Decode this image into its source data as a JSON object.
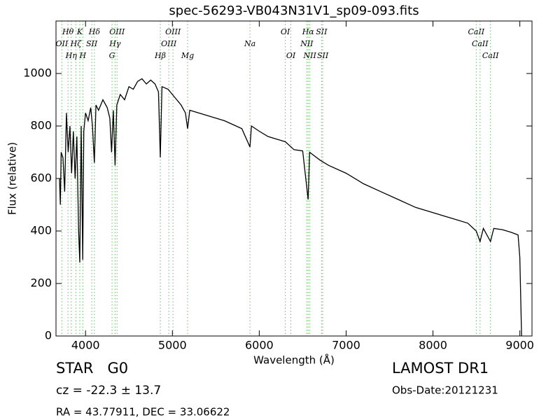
{
  "chart_data": {
    "type": "line",
    "title": "spec-56293-VB043N31V1_sp09-093.fits",
    "xlabel": "Wavelength (Å)",
    "ylabel": "Flux (relative)",
    "xlim": [
      3660,
      9140
    ],
    "ylim": [
      0,
      1200
    ],
    "xticks": [
      4000,
      5000,
      6000,
      7000,
      8000,
      9000
    ],
    "yticks": [
      0,
      200,
      400,
      600,
      800,
      1000
    ],
    "x": [
      3700,
      3710,
      3720,
      3740,
      3760,
      3780,
      3800,
      3820,
      3840,
      3860,
      3880,
      3900,
      3920,
      3934,
      3950,
      3968,
      3980,
      4000,
      4030,
      4060,
      4080,
      4102,
      4120,
      4150,
      4200,
      4250,
      4280,
      4300,
      4320,
      4340,
      4360,
      4400,
      4450,
      4500,
      4550,
      4600,
      4650,
      4700,
      4750,
      4800,
      4840,
      4861,
      4880,
      4950,
      5000,
      5050,
      5100,
      5150,
      5175,
      5200,
      5300,
      5400,
      5500,
      5600,
      5700,
      5800,
      5893,
      5910,
      6000,
      6100,
      6200,
      6300,
      6400,
      6500,
      6563,
      6580,
      6700,
      6800,
      7000,
      7200,
      7400,
      7600,
      7800,
      8000,
      8200,
      8400,
      8498,
      8542,
      8580,
      8662,
      8700,
      8800,
      8900,
      8980,
      9000,
      9020
    ],
    "series": [
      {
        "color": "#000000",
        "values": [
          600,
          500,
          700,
          680,
          550,
          850,
          700,
          800,
          620,
          780,
          600,
          760,
          400,
          280,
          800,
          290,
          780,
          850,
          820,
          870,
          800,
          660,
          880,
          860,
          900,
          870,
          830,
          700,
          860,
          650,
          880,
          920,
          900,
          950,
          940,
          970,
          980,
          960,
          975,
          960,
          930,
          680,
          950,
          940,
          920,
          900,
          880,
          850,
          790,
          860,
          850,
          840,
          830,
          820,
          805,
          790,
          720,
          800,
          780,
          760,
          750,
          740,
          710,
          705,
          520,
          700,
          670,
          650,
          620,
          580,
          550,
          520,
          490,
          470,
          450,
          430,
          400,
          360,
          410,
          360,
          410,
          405,
          395,
          385,
          300,
          0
        ]
      }
    ],
    "line_color": "#66bb66",
    "spectral_lines": [
      [
        {
          "label": "Hθ",
          "wavelength": 3798
        },
        {
          "label": "K",
          "wavelength": 3934
        },
        {
          "label": "Hδ",
          "wavelength": 4102
        },
        {
          "label": "OIII",
          "wavelength": 4363
        },
        {
          "label": "OIII",
          "wavelength": 5007
        },
        {
          "label": "OI",
          "wavelength": 6300
        },
        {
          "label": "Hα",
          "wavelength": 6563
        },
        {
          "label": "SII",
          "wavelength": 6717
        },
        {
          "label": "CaII",
          "wavelength": 8498
        }
      ],
      [
        {
          "label": "OII",
          "wavelength": 3727
        },
        {
          "label": "Hζ",
          "wavelength": 3889
        },
        {
          "label": "SII",
          "wavelength": 4072
        },
        {
          "label": "Hγ",
          "wavelength": 4340
        },
        {
          "label": "OIII",
          "wavelength": 4959
        },
        {
          "label": "Na",
          "wavelength": 5893
        },
        {
          "label": "NII",
          "wavelength": 6548
        },
        {
          "label": "CaII",
          "wavelength": 8542
        }
      ],
      [
        {
          "label": "Hη",
          "wavelength": 3835
        },
        {
          "label": "H",
          "wavelength": 3969
        },
        {
          "label": "G",
          "wavelength": 4305
        },
        {
          "label": "Hβ",
          "wavelength": 4861
        },
        {
          "label": "Mg",
          "wavelength": 5175
        },
        {
          "label": "OI",
          "wavelength": 6364
        },
        {
          "label": "NII",
          "wavelength": 6583
        },
        {
          "label": "SII",
          "wavelength": 6731
        },
        {
          "label": "CaII",
          "wavelength": 8662
        }
      ]
    ],
    "object_class": "STAR   G0",
    "survey": "LAMOST DR1",
    "redshift": "cz = -22.3 ± 13.7",
    "obs_date": "Obs-Date:20121231",
    "coordinates": "RA = 43.77911, DEC = 33.06622"
  }
}
